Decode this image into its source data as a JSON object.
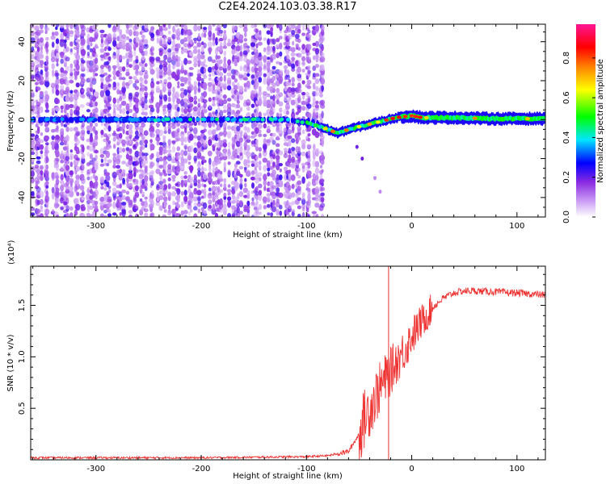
{
  "title": "C2E4.2024.103.03.38.R17",
  "chart_data": [
    {
      "type": "heatmap",
      "xlabel": "Height of straight line (km)",
      "ylabel": "Frequency (Hz)",
      "xlim": [
        -362,
        127
      ],
      "ylim": [
        -50,
        49
      ],
      "x_ticks": [
        -300,
        -200,
        -100,
        0,
        100
      ],
      "x_tick_labels": [
        "-300",
        "-200",
        "-100",
        "0",
        "100"
      ],
      "y_ticks": [
        -40,
        -20,
        0,
        20,
        40
      ],
      "y_tick_labels": [
        "-40",
        "-20",
        "0",
        "20",
        "40"
      ],
      "noise_region_x": [
        -362,
        -82
      ],
      "ridge_points": [
        {
          "x": -362,
          "y": 0
        },
        {
          "x": -300,
          "y": 0
        },
        {
          "x": -200,
          "y": 0
        },
        {
          "x": -120,
          "y": 0
        },
        {
          "x": -95,
          "y": -2
        },
        {
          "x": -80,
          "y": -5
        },
        {
          "x": -70,
          "y": -7
        },
        {
          "x": -60,
          "y": -5
        },
        {
          "x": -45,
          "y": -3
        },
        {
          "x": -30,
          "y": -1
        },
        {
          "x": -15,
          "y": 1
        },
        {
          "x": 0,
          "y": 2
        },
        {
          "x": 10,
          "y": 1
        },
        {
          "x": 40,
          "y": 1
        },
        {
          "x": 80,
          "y": 0.5
        },
        {
          "x": 127,
          "y": 0.5
        }
      ],
      "colorbar": {
        "label": "Normalized spectral amplitude",
        "ticks": [
          0.0,
          0.2,
          0.4,
          0.6,
          0.8
        ],
        "tick_labels": [
          "0.0",
          "0.2",
          "0.4",
          "0.6",
          "0.8"
        ],
        "range": [
          0,
          0.97
        ],
        "colors": [
          "#ffffff",
          "#8a2be2",
          "#0000ff",
          "#00ffff",
          "#00ff00",
          "#ffff00",
          "#ff8000",
          "#ff0000",
          "#ff1493"
        ]
      },
      "grid": false
    },
    {
      "type": "line",
      "xlabel": "Height of straight line (km)",
      "ylabel": "SNR (10 * v/v)",
      "y_multiplier": "(x10⁴)",
      "xlim": [
        -362,
        127
      ],
      "ylim": [
        0,
        1.88
      ],
      "x_ticks": [
        -300,
        -200,
        -100,
        0,
        100
      ],
      "x_tick_labels": [
        "-300",
        "-200",
        "-100",
        "0",
        "100"
      ],
      "y_ticks": [
        0.5,
        1.0,
        1.5
      ],
      "y_tick_labels": [
        "0.5",
        "1.0",
        "1.5"
      ],
      "line_color": "#ee3333",
      "series": [
        {
          "x": [
            -362,
            -300,
            -200,
            -100,
            -80,
            -60,
            -50,
            -45,
            -40,
            -35,
            -30,
            -25,
            -20,
            -15,
            -10,
            -5,
            0,
            10,
            20,
            30,
            40,
            50,
            60,
            80,
            100,
            127
          ],
          "y": [
            0.02,
            0.02,
            0.02,
            0.03,
            0.04,
            0.08,
            0.25,
            0.4,
            0.5,
            0.6,
            0.7,
            0.78,
            0.86,
            0.95,
            1.02,
            1.1,
            1.2,
            1.35,
            1.48,
            1.57,
            1.62,
            1.64,
            1.64,
            1.63,
            1.62,
            1.6
          ]
        }
      ],
      "spike": {
        "x": -22,
        "y_top": 1.88,
        "y_bottom": 0.0
      },
      "grid": false
    }
  ]
}
